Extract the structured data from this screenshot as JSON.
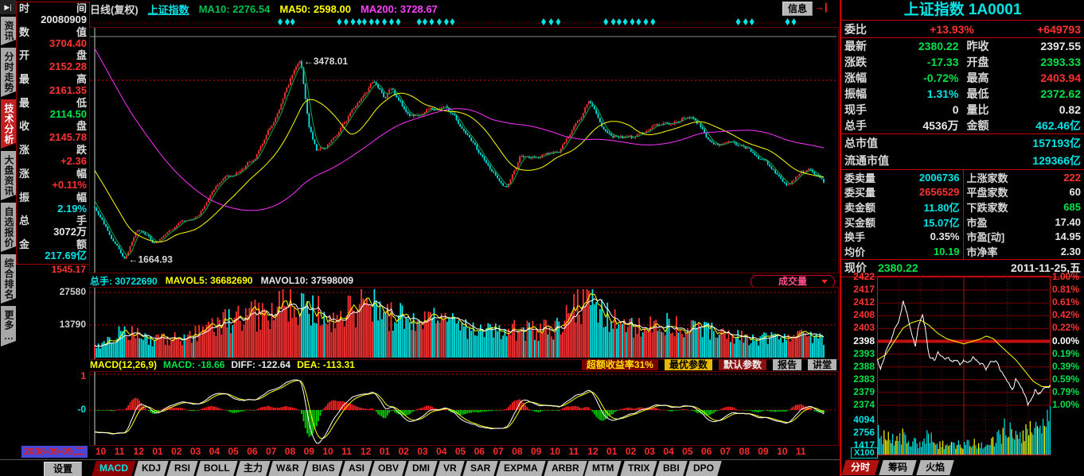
{
  "colors": {
    "red": "#ff3232",
    "green": "#00e14b",
    "cyan": "#00e5e5",
    "white": "#e8e8e8",
    "yellow": "#ffff00",
    "magenta": "#ff40ff",
    "up": "#ff3232",
    "down": "#00e5e5",
    "ma10": "#00b050",
    "ma50": "#ffff00",
    "ma200": "#ff30ff",
    "grid": "#7a0000",
    "border": "#cc0000"
  },
  "sidebar": {
    "collapse_icon": "▶|",
    "items": [
      {
        "label": "资讯",
        "active": false
      },
      {
        "label": "分时走势",
        "active": false
      },
      {
        "label": "技术分析",
        "active": true
      },
      {
        "label": "大盘资讯",
        "active": false
      },
      {
        "label": "自选报价",
        "active": false
      },
      {
        "label": "综合排名",
        "active": false
      },
      {
        "label": "更多…",
        "active": false
      }
    ]
  },
  "left_panel": {
    "rows": [
      {
        "label_a": "时",
        "label_b": "间",
        "value": "20080909",
        "color": "white"
      },
      {
        "label_a": "数",
        "label_b": "值",
        "value": "3704.40",
        "color": "red"
      },
      {
        "label_a": "开",
        "label_b": "盘",
        "value": "2152.28",
        "color": "red"
      },
      {
        "label_a": "最",
        "label_b": "高",
        "value": "2161.35",
        "color": "red"
      },
      {
        "label_a": "最",
        "label_b": "低",
        "value": "2114.50",
        "color": "green"
      },
      {
        "label_a": "收",
        "label_b": "盘",
        "value": "2145.78",
        "color": "red"
      },
      {
        "label_a": "涨",
        "label_b": "跌",
        "value": "+2.36",
        "color": "red"
      },
      {
        "label_a": "涨",
        "label_b": "幅",
        "value": "+0.11%",
        "color": "red"
      },
      {
        "label_a": "振",
        "label_b": "幅",
        "value": "2.19%",
        "color": "cyan"
      },
      {
        "label_a": "总",
        "label_b": "手",
        "value": "3072万",
        "color": "white"
      },
      {
        "label_a": "金",
        "label_b": "额",
        "value": "217.69亿",
        "color": "cyan"
      }
    ],
    "price_scale_bottom": "1545.17",
    "volume_scale": [
      "27580",
      "13790"
    ],
    "macd_scale_top": "1",
    "macd_scale_zero": "-0"
  },
  "toolbar": {
    "period": "日线(复权)",
    "symbol": "上证指数",
    "ma10": "MA10: 2276.54",
    "ma50": "MA50: 2598.00",
    "ma200": "MA200: 3728.67",
    "info_label": "信息",
    "arrow_icon": "→|"
  },
  "volume_pane": {
    "total": "总手: 30722690",
    "mavol5": "MAVOL5: 36682690",
    "mavol10": "MAVOL10: 37598009",
    "dropdown_label": "成交量"
  },
  "macd_pane": {
    "params": "MACD(12,26,9)",
    "macd": "MACD: -18.66",
    "diff": "DIFF: -122.64",
    "dea": "DEA: -113.31",
    "excess_return": "超额收益率31%",
    "btn_optimal": "最优参数",
    "btn_default": "默认参数",
    "btn_report": "报告",
    "btn_lecture": "讲堂"
  },
  "date_axis": {
    "crosshair_date": "2008-09-09,二",
    "months": [
      "10",
      "11",
      "12",
      "01",
      "02",
      "03",
      "04",
      "05",
      "06",
      "07",
      "08",
      "09",
      "10",
      "11",
      "12",
      "01",
      "02",
      "03",
      "04",
      "05",
      "06",
      "07",
      "08",
      "09",
      "10",
      "11",
      "12",
      "01",
      "02",
      "03",
      "04",
      "05",
      "06",
      "07",
      "08",
      "09",
      "10",
      "11"
    ]
  },
  "bottom_bar": {
    "settings": "设置",
    "tabs": [
      {
        "label": "MACD",
        "active": true
      },
      {
        "label": "KDJ",
        "active": false
      },
      {
        "label": "RSI",
        "active": false
      },
      {
        "label": "BOLL",
        "active": false
      },
      {
        "label": "主力",
        "active": false
      },
      {
        "label": "W&R",
        "active": false
      },
      {
        "label": "BIAS",
        "active": false
      },
      {
        "label": "ASI",
        "active": false
      },
      {
        "label": "OBV",
        "active": false
      },
      {
        "label": "DMI",
        "active": false
      },
      {
        "label": "VR",
        "active": false
      },
      {
        "label": "SAR",
        "active": false
      },
      {
        "label": "EXPMA",
        "active": false
      },
      {
        "label": "ARBR",
        "active": false
      },
      {
        "label": "MTM",
        "active": false
      },
      {
        "label": "TRIX",
        "active": false
      },
      {
        "label": "BBI",
        "active": false
      },
      {
        "label": "DPO",
        "active": false
      }
    ]
  },
  "right_panel": {
    "title": "上证指数 1A0001",
    "weibi": {
      "label": "委比",
      "value": "+13.93%",
      "value2": "+649793",
      "color": "red"
    },
    "pair_rows": [
      {
        "l1": "最新",
        "v1": "2380.22",
        "c1": "green",
        "l2": "昨收",
        "v2": "2397.55",
        "c2": "white"
      },
      {
        "l1": "涨跌",
        "v1": "-17.33",
        "c1": "green",
        "l2": "开盘",
        "v2": "2393.33",
        "c2": "green"
      },
      {
        "l1": "涨幅",
        "v1": "-0.72%",
        "c1": "green",
        "l2": "最高",
        "v2": "2403.94",
        "c2": "red"
      },
      {
        "l1": "振幅",
        "v1": "1.31%",
        "c1": "cyan",
        "l2": "最低",
        "v2": "2372.62",
        "c2": "green"
      },
      {
        "l1": "现手",
        "v1": "0",
        "c1": "white",
        "l2": "量比",
        "v2": "0.82",
        "c2": "white"
      },
      {
        "l1": "总手",
        "v1": "4536万",
        "c1": "white",
        "l2": "金额",
        "v2": "462.46亿",
        "c2": "cyan"
      }
    ],
    "cap_rows": [
      {
        "label": "总市值",
        "value": "157193亿",
        "color": "cyan"
      },
      {
        "label": "流通市值",
        "value": "129366亿",
        "color": "cyan"
      }
    ],
    "left_col": [
      {
        "label": "委卖量",
        "value": "2006736",
        "color": "cyan"
      },
      {
        "label": "委买量",
        "value": "2656529",
        "color": "red"
      },
      {
        "label": "卖金额",
        "value": "11.80亿",
        "color": "cyan"
      },
      {
        "label": "买金额",
        "value": "15.07亿",
        "color": "cyan"
      },
      {
        "label": "换手",
        "value": "0.35%",
        "color": "white"
      },
      {
        "label": "均价",
        "value": "10.19",
        "color": "green"
      }
    ],
    "right_col": [
      {
        "label": "上涨家数",
        "value": "222",
        "color": "red"
      },
      {
        "label": "平盘家数",
        "value": "60",
        "color": "white"
      },
      {
        "label": "下跌家数",
        "value": "685",
        "color": "green"
      },
      {
        "label": "市盈",
        "value": "17.40",
        "color": "white"
      },
      {
        "label": "市盈[动]",
        "value": "14.95",
        "color": "white"
      },
      {
        "label": "市净率",
        "value": "2.30",
        "color": "white"
      }
    ],
    "price_row": {
      "label": "现价",
      "value": "2380.22",
      "color": "green",
      "date": "2011-11-25,五"
    },
    "mini": {
      "price_labels": [
        "2422",
        "2417",
        "2412",
        "2408",
        "2403",
        "2398",
        "2393",
        "2388",
        "2383",
        "2379",
        "2374"
      ],
      "pct_labels": [
        "1.00%",
        "0.81%",
        "0.61%",
        "0.42%",
        "0.22%",
        "0.00%",
        "0.19%",
        "0.39%",
        "0.59%",
        "0.79%",
        "1.00%"
      ],
      "vol_labels": [
        "4094",
        "2756",
        "1417"
      ],
      "multiplier": "X100"
    },
    "tabs": [
      {
        "label": "分时",
        "active": true
      },
      {
        "label": "筹码",
        "active": false
      },
      {
        "label": "火焰",
        "active": false
      }
    ]
  },
  "chart_data": [
    {
      "name": "main",
      "type": "candlestick",
      "title": "上证指数 日线(复权)",
      "t_unit": "months_since_2008-09-09",
      "t_max": 38.5,
      "ylim": [
        1545,
        3777
      ],
      "anchors": [
        [
          0,
          2145
        ],
        [
          0.5,
          2000
        ],
        [
          1.0,
          1830
        ],
        [
          1.6,
          1665
        ],
        [
          2.2,
          1950
        ],
        [
          2.7,
          1900
        ],
        [
          3.1,
          1821
        ],
        [
          4.5,
          2000
        ],
        [
          5.5,
          2082
        ],
        [
          6.5,
          2373
        ],
        [
          7.5,
          2478
        ],
        [
          8.5,
          2633
        ],
        [
          9.5,
          2960
        ],
        [
          10.5,
          3412
        ],
        [
          10.9,
          3478
        ],
        [
          11.3,
          2900
        ],
        [
          11.7,
          2670
        ],
        [
          12.2,
          2720
        ],
        [
          12.8,
          2840
        ],
        [
          13.4,
          2995
        ],
        [
          14.2,
          3195
        ],
        [
          14.7,
          3330
        ],
        [
          15.3,
          3180
        ],
        [
          15.6,
          3277
        ],
        [
          16.3,
          3080
        ],
        [
          16.6,
          2989
        ],
        [
          17.5,
          3052
        ],
        [
          18.5,
          3109
        ],
        [
          19.5,
          2870
        ],
        [
          20.5,
          2592
        ],
        [
          21.0,
          2500
        ],
        [
          21.8,
          2340
        ],
        [
          22.5,
          2640
        ],
        [
          23.5,
          2640
        ],
        [
          24.5,
          2655
        ],
        [
          25.3,
          2900
        ],
        [
          25.8,
          3050
        ],
        [
          26.1,
          3150
        ],
        [
          26.6,
          2950
        ],
        [
          27.1,
          2830
        ],
        [
          27.6,
          2808
        ],
        [
          28.5,
          2790
        ],
        [
          29.5,
          2905
        ],
        [
          30.5,
          2928
        ],
        [
          31.3,
          3020
        ],
        [
          31.7,
          3000
        ],
        [
          32.1,
          2911
        ],
        [
          32.6,
          2743
        ],
        [
          33.5,
          2762
        ],
        [
          34.5,
          2701
        ],
        [
          35.5,
          2567
        ],
        [
          36.3,
          2400
        ],
        [
          36.6,
          2359
        ],
        [
          37.2,
          2470
        ],
        [
          37.7,
          2510
        ],
        [
          38.1,
          2450
        ],
        [
          38.5,
          2380
        ]
      ],
      "pre_anchors": [
        [
          -13,
          6000
        ],
        [
          -11,
          5500
        ],
        [
          -9,
          5000
        ],
        [
          -7,
          4300
        ],
        [
          -5,
          3600
        ],
        [
          -3,
          3000
        ],
        [
          -1.5,
          2600
        ],
        [
          -0.5,
          2300
        ],
        [
          0,
          2145
        ]
      ],
      "high": {
        "t": 10.9,
        "value": 3478.01
      },
      "low": {
        "t": 1.6,
        "value": 1664.93
      },
      "ma_values": {
        "ma10": 2276.54,
        "ma50": 2598.0,
        "ma200": 3728.67
      }
    },
    {
      "name": "volume",
      "type": "bar",
      "unit": "手",
      "total": 30722690,
      "mavol5": 36682690,
      "mavol10": 37598009,
      "gridlines": [
        27580,
        13790
      ],
      "anchors": [
        [
          0,
          6000
        ],
        [
          1,
          9000
        ],
        [
          1.6,
          12000
        ],
        [
          2.5,
          9000
        ],
        [
          4,
          8000
        ],
        [
          5,
          9500
        ],
        [
          6,
          14000
        ],
        [
          7,
          16000
        ],
        [
          8,
          18000
        ],
        [
          9,
          20000
        ],
        [
          10,
          26000
        ],
        [
          10.9,
          24000
        ],
        [
          11.5,
          22000
        ],
        [
          12.5,
          18000
        ],
        [
          13.5,
          21000
        ],
        [
          14.5,
          25000
        ],
        [
          15.5,
          20000
        ],
        [
          16.5,
          17000
        ],
        [
          17.5,
          18000
        ],
        [
          18.5,
          16000
        ],
        [
          19.5,
          14000
        ],
        [
          20.5,
          12000
        ],
        [
          21.5,
          11000
        ],
        [
          22.5,
          13000
        ],
        [
          23.5,
          12000
        ],
        [
          24.5,
          14000
        ],
        [
          25.5,
          24000
        ],
        [
          26.1,
          28000
        ],
        [
          27,
          20000
        ],
        [
          28,
          15000
        ],
        [
          29,
          14000
        ],
        [
          30,
          15000
        ],
        [
          31,
          14000
        ],
        [
          32,
          12000
        ],
        [
          33,
          11000
        ],
        [
          34,
          10000
        ],
        [
          35,
          9000
        ],
        [
          36,
          8500
        ],
        [
          37,
          10000
        ],
        [
          38,
          9000
        ],
        [
          38.5,
          8000
        ]
      ]
    },
    {
      "name": "macd",
      "type": "macd",
      "params": [
        12,
        26,
        9
      ],
      "values": {
        "macd": -18.66,
        "diff": -122.64,
        "dea": -113.31
      }
    },
    {
      "name": "intraday",
      "type": "line",
      "date": "2011-11-25",
      "close": 2380.22,
      "prev_close": 2397.55,
      "price_range": [
        2374,
        2422
      ],
      "pct_range": [
        -1.0,
        1.0
      ],
      "vol_gridlines": [
        4094,
        2756,
        1417
      ],
      "price": [
        [
          0,
          2391
        ],
        [
          0.02,
          2388
        ],
        [
          0.05,
          2394
        ],
        [
          0.08,
          2398
        ],
        [
          0.1,
          2402
        ],
        [
          0.13,
          2407
        ],
        [
          0.15,
          2413
        ],
        [
          0.17,
          2409
        ],
        [
          0.2,
          2400
        ],
        [
          0.22,
          2396
        ],
        [
          0.24,
          2404
        ],
        [
          0.26,
          2408
        ],
        [
          0.28,
          2402
        ],
        [
          0.3,
          2392
        ],
        [
          0.33,
          2391
        ],
        [
          0.35,
          2394
        ],
        [
          0.38,
          2391
        ],
        [
          0.4,
          2392
        ],
        [
          0.43,
          2390
        ],
        [
          0.45,
          2391
        ],
        [
          0.48,
          2389
        ],
        [
          0.5,
          2391
        ],
        [
          0.53,
          2390
        ],
        [
          0.55,
          2392
        ],
        [
          0.58,
          2391
        ],
        [
          0.6,
          2390
        ],
        [
          0.63,
          2388
        ],
        [
          0.65,
          2390
        ],
        [
          0.68,
          2391
        ],
        [
          0.7,
          2389
        ],
        [
          0.73,
          2385
        ],
        [
          0.75,
          2383
        ],
        [
          0.78,
          2380
        ],
        [
          0.8,
          2384
        ],
        [
          0.82,
          2381
        ],
        [
          0.85,
          2378
        ],
        [
          0.87,
          2374
        ],
        [
          0.89,
          2376
        ],
        [
          0.91,
          2380
        ],
        [
          0.93,
          2378
        ],
        [
          0.95,
          2379
        ],
        [
          0.97,
          2381
        ],
        [
          1.0,
          2382
        ]
      ],
      "avg": [
        [
          0,
          2391
        ],
        [
          0.05,
          2393
        ],
        [
          0.1,
          2398
        ],
        [
          0.15,
          2403
        ],
        [
          0.2,
          2405
        ],
        [
          0.25,
          2406
        ],
        [
          0.3,
          2404
        ],
        [
          0.35,
          2401
        ],
        [
          0.4,
          2399
        ],
        [
          0.45,
          2398
        ],
        [
          0.5,
          2397
        ],
        [
          0.55,
          2398
        ],
        [
          0.6,
          2399
        ],
        [
          0.63,
          2400
        ],
        [
          0.67,
          2399
        ],
        [
          0.7,
          2397
        ],
        [
          0.75,
          2394
        ],
        [
          0.8,
          2391
        ],
        [
          0.85,
          2387
        ],
        [
          0.9,
          2383
        ],
        [
          0.95,
          2381
        ],
        [
          1.0,
          2381
        ]
      ],
      "vol_envelope": [
        [
          0,
          2600
        ],
        [
          0.05,
          2200
        ],
        [
          0.1,
          1900
        ],
        [
          0.15,
          2400
        ],
        [
          0.2,
          1700
        ],
        [
          0.25,
          1500
        ],
        [
          0.3,
          2800
        ],
        [
          0.35,
          1400
        ],
        [
          0.4,
          1300
        ],
        [
          0.45,
          1200
        ],
        [
          0.5,
          1300
        ],
        [
          0.55,
          1500
        ],
        [
          0.6,
          1400
        ],
        [
          0.65,
          1300
        ],
        [
          0.7,
          2200
        ],
        [
          0.75,
          3600
        ],
        [
          0.78,
          2400
        ],
        [
          0.82,
          2000
        ],
        [
          0.85,
          2600
        ],
        [
          0.88,
          3000
        ],
        [
          0.9,
          2400
        ],
        [
          0.93,
          3200
        ],
        [
          0.96,
          4200
        ],
        [
          1.0,
          4900
        ]
      ]
    }
  ]
}
